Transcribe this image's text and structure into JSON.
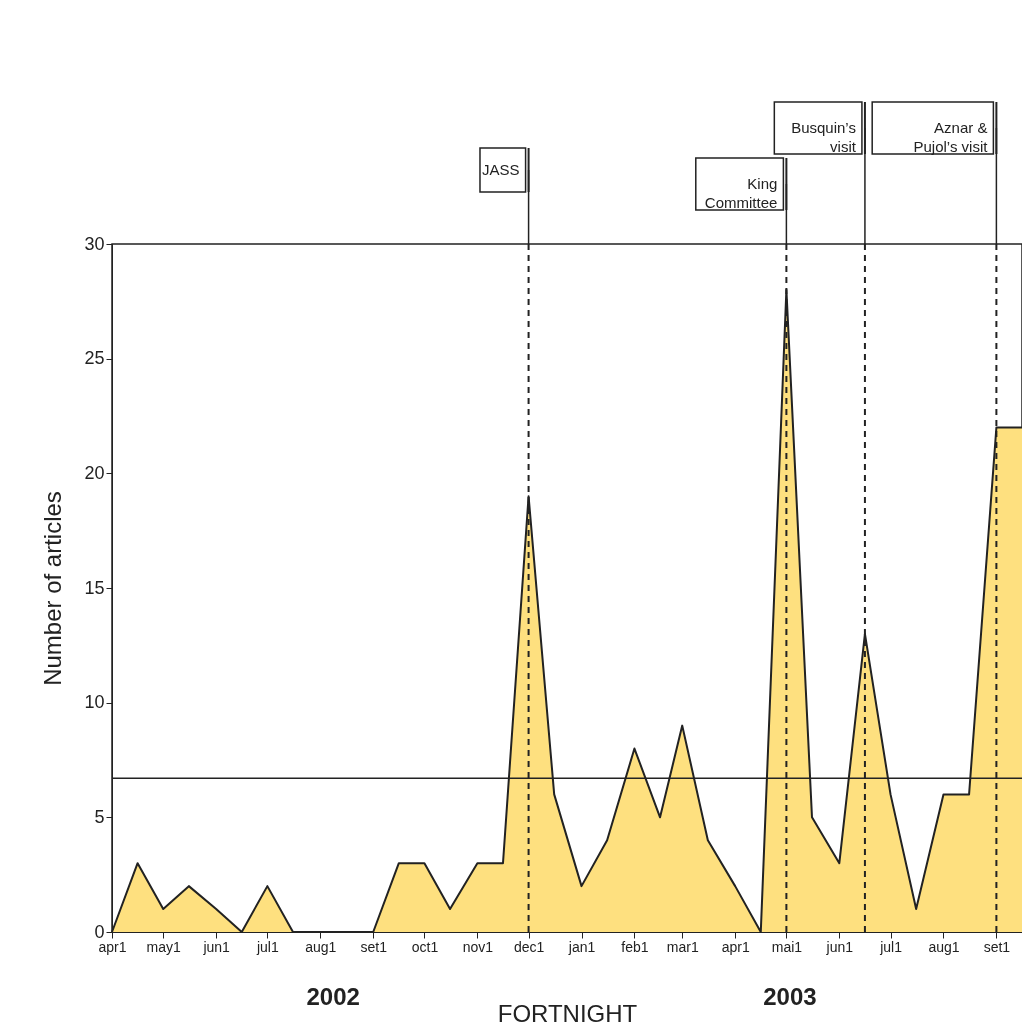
{
  "chart_data": {
    "type": "area",
    "xlabel": "FORTNIGHT",
    "ylabel": "Number of articles",
    "x": [
      "2002-04-01",
      "2002-04-16",
      "2002-05-01",
      "2002-05-16",
      "2002-06-01",
      "2002-06-16",
      "2002-07-01",
      "2002-07-16",
      "2002-08-01",
      "2002-08-16",
      "2002-09-01",
      "2002-09-16",
      "2002-10-01",
      "2002-10-16",
      "2002-11-01",
      "2002-11-16",
      "2002-12-01",
      "2002-12-16",
      "2003-01-01",
      "2003-01-16",
      "2003-02-01",
      "2003-02-16",
      "2003-03-01",
      "2003-03-16",
      "2003-04-01",
      "2003-04-16",
      "2003-05-01",
      "2003-05-16",
      "2003-06-01",
      "2003-06-16",
      "2003-07-01",
      "2003-07-16",
      "2003-08-01",
      "2003-08-16",
      "2003-09-01",
      "2003-09-16"
    ],
    "series": [
      {
        "color": "#fee07f",
        "values": [
          0,
          3,
          1,
          2,
          1,
          0,
          2,
          0,
          0,
          0,
          0,
          3,
          3,
          1,
          3,
          3,
          19,
          6,
          2,
          4,
          8,
          5,
          9,
          4,
          2,
          0,
          28,
          5,
          3,
          13,
          6,
          1,
          6,
          6,
          22,
          22
        ]
      }
    ],
    "xlim": [
      "2002-04-01",
      "2003-09-16"
    ],
    "xticks": [
      {
        "value": "2002-04-01",
        "label": "apr1"
      },
      {
        "value": "2002-05-01",
        "label": "may1"
      },
      {
        "value": "2002-06-01",
        "label": "jun1"
      },
      {
        "value": "2002-07-01",
        "label": "jul1"
      },
      {
        "value": "2002-08-01",
        "label": "aug1"
      },
      {
        "value": "2002-09-01",
        "label": "set1"
      },
      {
        "value": "2002-10-01",
        "label": "oct1"
      },
      {
        "value": "2002-11-01",
        "label": "nov1"
      },
      {
        "value": "2002-12-01",
        "label": "dec1"
      },
      {
        "value": "2003-01-01",
        "label": "jan1"
      },
      {
        "value": "2003-02-01",
        "label": "feb1"
      },
      {
        "value": "2003-03-01",
        "label": "mar1"
      },
      {
        "value": "2003-04-01",
        "label": "apr1"
      },
      {
        "value": "2003-05-01",
        "label": "mai1"
      },
      {
        "value": "2003-06-01",
        "label": "jun1"
      },
      {
        "value": "2003-07-01",
        "label": "jul1"
      },
      {
        "value": "2003-08-01",
        "label": "aug1"
      },
      {
        "value": "2003-09-01",
        "label": "set1"
      }
    ],
    "ylim": [
      0,
      30
    ],
    "yticks": [
      0,
      5,
      10,
      15,
      20,
      25,
      30
    ],
    "ref_lines": [
      {
        "axis": "y",
        "value": 6.7,
        "line_style": "solid"
      },
      {
        "axis": "x",
        "value": "2002-12-01",
        "label": "JASS",
        "line_style": "dashed"
      },
      {
        "axis": "x",
        "value": "2003-05-01",
        "label": "King Committee",
        "line_style": "dashed"
      },
      {
        "axis": "x",
        "value": "2003-06-16",
        "label": "Busquin’s visit",
        "line_style": "dashed"
      },
      {
        "axis": "x",
        "value": "2003-09-01",
        "label": "Aznar & Pujol’s visit",
        "line_style": "dashed"
      }
    ],
    "annotations": [
      "2002",
      "2003"
    ],
    "grid": false
  }
}
